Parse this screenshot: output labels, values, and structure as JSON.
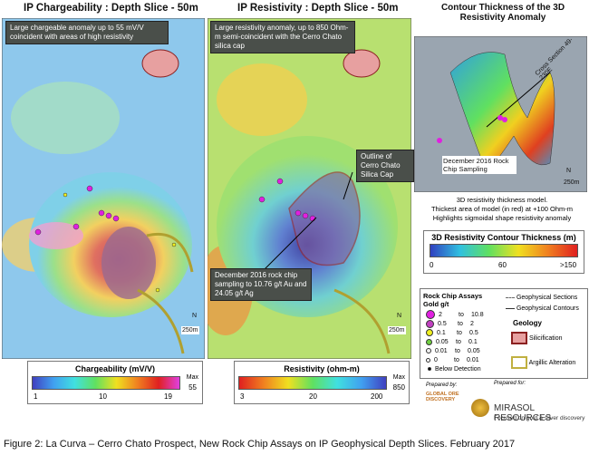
{
  "panels": [
    {
      "title": "IP Chargeability : Depth Slice  - 50m",
      "annotation": "Large chargeable anomaly up to 55 mV/V coincident with areas of high resistivity",
      "scale": "250m",
      "north": "N"
    },
    {
      "title": "IP Resistivity : Depth Slice  - 50m",
      "annotation": "Large resistivity anomaly, up to 850 Ohm-m semi-coincident with the Cerro Chato silica cap",
      "callout_cap": "Outline of Cerro Chato Silica Cap",
      "callout_samples": "December  2016 rock chip sampling to 10.76 g/t Au and 24.05 g/t Ag",
      "scale": "250m",
      "north": "N"
    },
    {
      "title": "Contour Thickness of the 3D Resistivity Anomaly",
      "section": "Cross Section 49-230E",
      "callout": "December 2016 Rock Chip Sampling",
      "scale": "250m",
      "north": "N"
    }
  ],
  "model_notes": [
    "3D resistivity thickness model.",
    "Thickest area of model (in red) at +100 Ohm-m",
    "Highlights sigmoidal shape resistivity anomaly"
  ],
  "thickness_bar": {
    "title": "3D Resistivity Contour Thickness (m)",
    "ticks": [
      "0",
      "60",
      ">150"
    ]
  },
  "chargeability_bar": {
    "title": "Chargeability (mV/V)",
    "ticks": [
      "1",
      "10",
      "19"
    ],
    "max": "Max",
    "max_value": "55"
  },
  "resistivity_bar": {
    "title": "Resistivity (ohm-m)",
    "ticks": [
      "3",
      "20",
      "200"
    ],
    "max": "Max",
    "max_value": "850"
  },
  "legend": {
    "title": "Rock Chip Assays",
    "subtitle": "Gold g/t",
    "rows": [
      [
        "2",
        "to",
        "10.8"
      ],
      [
        "0.5",
        "to",
        "2"
      ],
      [
        "0.1",
        "to",
        "0.5"
      ],
      [
        "0.05",
        "to",
        "0.1"
      ],
      [
        "0.01",
        "to",
        "0.05"
      ],
      [
        "0",
        "to",
        "0.01"
      ]
    ],
    "below": "Below Detection",
    "lines": [
      "Geophysical Sections",
      "Geophysical Contours"
    ],
    "geology": "Geology",
    "units": [
      "Silicification",
      "Argillic Alteration"
    ]
  },
  "logos": {
    "prepared_by": "Prepared by:",
    "gold": "GLOBAL ORE DISCOVERY",
    "prepared_for": "Prepared for:",
    "mirasol": "MIRASOL RESOURCES",
    "tagline": "Focused on gold & silver discovery"
  },
  "caption": "Figure 2: La Curva – Cerro Chato Prospect, New Rock Chip Assays on IP Geophysical Depth Slices. February 2017"
}
